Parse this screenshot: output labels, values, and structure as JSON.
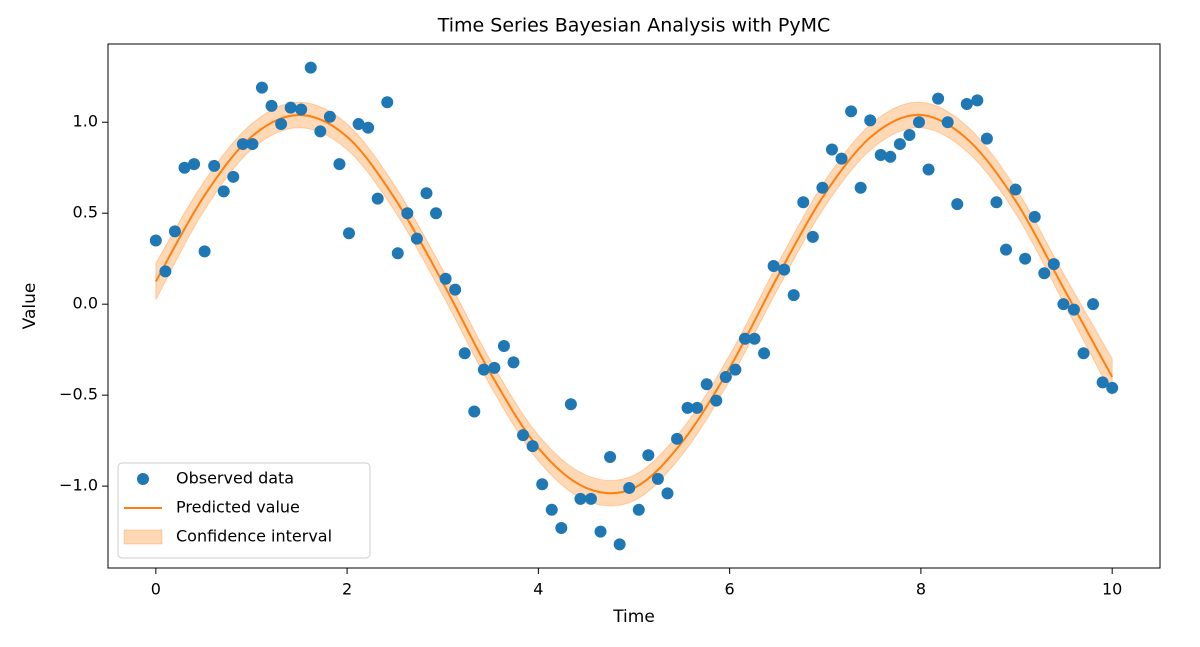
{
  "chart_data": {
    "type": "line",
    "title": "Time Series Bayesian Analysis with PyMC",
    "x_label": "Time",
    "y_label": "Value",
    "xlim": [
      -0.5,
      10.5
    ],
    "ylim": [
      -1.45,
      1.43
    ],
    "xticks": [
      0,
      2,
      4,
      6,
      8,
      10
    ],
    "yticks": [
      {
        "value": -1,
        "label": "−1.0"
      },
      {
        "value": -0.5,
        "label": "−0.5"
      },
      {
        "value": 0,
        "label": "0.0"
      },
      0.5,
      {
        "value": 1,
        "label": "1.0"
      }
    ],
    "legend": "lower left",
    "grid": false,
    "series": [
      {
        "name": "Observed data",
        "type": "scatter",
        "color": "#1f77b4",
        "x": [
          0,
          0.1,
          0.2,
          0.3,
          0.4,
          0.51,
          0.61,
          0.71,
          0.81,
          0.91,
          1.01,
          1.11,
          1.21,
          1.31,
          1.41,
          1.52,
          1.62,
          1.72,
          1.82,
          1.92,
          2.02,
          2.12,
          2.22,
          2.32,
          2.42,
          2.53,
          2.63,
          2.73,
          2.83,
          2.93,
          3.03,
          3.13,
          3.23,
          3.33,
          3.43,
          3.54,
          3.64,
          3.74,
          3.84,
          3.94,
          4.04,
          4.14,
          4.24,
          4.34,
          4.44,
          4.55,
          4.65,
          4.75,
          4.85,
          4.95,
          5.05,
          5.15,
          5.25,
          5.35,
          5.45,
          5.56,
          5.66,
          5.76,
          5.86,
          5.96,
          6.06,
          6.16,
          6.26,
          6.36,
          6.46,
          6.57,
          6.67,
          6.77,
          6.87,
          6.97,
          7.07,
          7.17,
          7.27,
          7.37,
          7.47,
          7.58,
          7.68,
          7.78,
          7.88,
          7.98,
          8.08,
          8.18,
          8.28,
          8.38,
          8.48,
          8.59,
          8.69,
          8.79,
          8.89,
          8.99,
          9.09,
          9.19,
          9.29,
          9.39,
          9.49,
          9.6,
          9.7,
          9.8,
          9.9,
          10
        ],
        "values": [
          0.35,
          0.18,
          0.4,
          0.75,
          0.77,
          0.29,
          0.76,
          0.62,
          0.7,
          0.88,
          0.88,
          1.19,
          1.09,
          0.99,
          1.08,
          1.07,
          1.3,
          0.95,
          1.03,
          0.77,
          0.39,
          0.99,
          0.97,
          0.58,
          1.11,
          0.28,
          0.5,
          0.36,
          0.61,
          0.5,
          0.14,
          0.08,
          -0.27,
          -0.59,
          -0.36,
          -0.35,
          -0.23,
          -0.32,
          -0.72,
          -0.78,
          -0.99,
          -1.13,
          -1.23,
          -0.55,
          -1.07,
          -1.07,
          -1.25,
          -0.84,
          -1.32,
          -1.01,
          -1.13,
          -0.83,
          -0.96,
          -1.04,
          -0.74,
          -0.57,
          -0.57,
          -0.44,
          -0.53,
          -0.4,
          -0.36,
          -0.19,
          -0.19,
          -0.27,
          0.21,
          0.19,
          0.05,
          0.56,
          0.37,
          0.64,
          0.85,
          0.8,
          1.06,
          0.64,
          1.01,
          0.82,
          0.81,
          0.88,
          0.93,
          1.0,
          0.74,
          1.13,
          1.0,
          0.55,
          1.1,
          1.12,
          0.91,
          0.56,
          0.3,
          0.63,
          0.25,
          0.48,
          0.17,
          0.22,
          0.0,
          -0.03,
          -0.27,
          0.0,
          -0.43,
          -0.46
        ]
      },
      {
        "name": "Predicted value",
        "type": "line",
        "color": "#ff7f0e",
        "x": [
          0,
          0.5,
          1,
          1.5,
          2,
          2.5,
          3,
          3.5,
          4,
          4.5,
          5,
          5.5,
          6,
          6.5,
          7,
          7.5,
          8,
          8.5,
          9,
          9.5,
          10
        ],
        "values": [
          0.125,
          0.59,
          0.92,
          1.04,
          0.92,
          0.58,
          0.12,
          -0.38,
          -0.79,
          -1.01,
          -1.01,
          -0.76,
          -0.35,
          0.15,
          0.61,
          0.93,
          1.04,
          0.9,
          0.56,
          0.08,
          -0.4
        ]
      },
      {
        "name": "Confidence interval",
        "type": "band",
        "color": "#ff7f0e",
        "x": [
          0,
          0.5,
          1,
          1.5,
          2,
          2.5,
          3,
          3.5,
          4,
          4.5,
          5,
          5.5,
          6,
          6.5,
          7,
          7.5,
          8,
          8.5,
          9,
          9.5,
          10
        ],
        "lower": [
          0.025,
          0.51,
          0.85,
          0.97,
          0.85,
          0.51,
          0.05,
          -0.45,
          -0.86,
          -1.08,
          -1.08,
          -0.83,
          -0.42,
          0.08,
          0.54,
          0.86,
          0.97,
          0.83,
          0.49,
          0.0,
          -0.5
        ],
        "upper": [
          0.225,
          0.67,
          0.99,
          1.11,
          0.99,
          0.65,
          0.19,
          -0.31,
          -0.72,
          -0.94,
          -0.94,
          -0.69,
          -0.28,
          0.22,
          0.68,
          1.0,
          1.11,
          0.97,
          0.63,
          0.16,
          -0.3
        ]
      }
    ]
  }
}
